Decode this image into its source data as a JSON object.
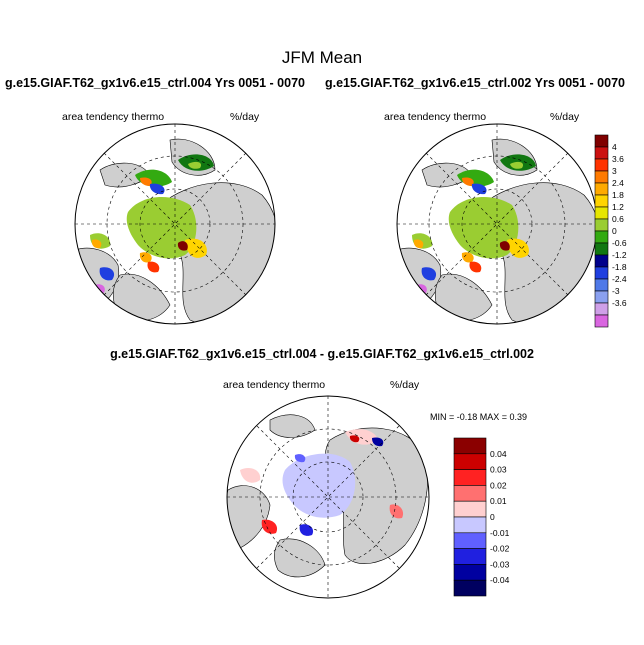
{
  "title": "JFM Mean",
  "panels": {
    "left_case": "g.e15.GIAF.T62_gx1v6.e15_ctrl.004  Yrs 0051 - 0070",
    "right_case": "g.e15.GIAF.T62_gx1v6.e15_ctrl.002  Yrs 0051 - 0070",
    "diff_case": "g.e15.GIAF.T62_gx1v6.e15_ctrl.004 - g.e15.GIAF.T62_gx1v6.e15_ctrl.002",
    "variable": "area tendency thermo",
    "units": "%/day",
    "minmax": "MIN =  -0.18 MAX =   0.39"
  },
  "chart_data": [
    {
      "type": "heatmap",
      "projection": "north-polar-stereographic",
      "title": "g.e15.GIAF.T62_gx1v6.e15_ctrl.004  Yrs 0051 - 0070",
      "variable": "area tendency thermo",
      "units": "%/day",
      "colorbar": {
        "levels": [
          "4",
          "3.6",
          "3",
          "2.4",
          "1.8",
          "1.2",
          "0.6",
          "0",
          "-0.6",
          "-1.2",
          "-1.8",
          "-2.4",
          "-3",
          "-3.6"
        ],
        "colors": [
          "#7f0000",
          "#cc1111",
          "#ff3300",
          "#ff7a00",
          "#ffaa00",
          "#ffd400",
          "#e6e600",
          "#9acd32",
          "#33aa11",
          "#117711",
          "#00008b",
          "#1f3fe0",
          "#4f79e8",
          "#8aa0f0",
          "#cfa0e8",
          "#d966e0"
        ]
      }
    },
    {
      "type": "heatmap",
      "projection": "north-polar-stereographic",
      "title": "g.e15.GIAF.T62_gx1v6.e15_ctrl.002  Yrs 0051 - 0070",
      "variable": "area tendency thermo",
      "units": "%/day"
    },
    {
      "type": "heatmap",
      "projection": "north-polar-stereographic",
      "title": "g.e15.GIAF.T62_gx1v6.e15_ctrl.004 - g.e15.GIAF.T62_gx1v6.e15_ctrl.002",
      "variable": "area tendency thermo",
      "units": "%/day",
      "min": -0.18,
      "max": 0.39,
      "colorbar": {
        "levels": [
          "0.04",
          "0.03",
          "0.02",
          "0.01",
          "0",
          "-0.01",
          "-0.02",
          "-0.03",
          "-0.04"
        ],
        "colors": [
          "#8b0000",
          "#cc0000",
          "#ff2222",
          "#ff7070",
          "#ffd0d0",
          "#c8c8ff",
          "#6060ff",
          "#2020e0",
          "#0000a0",
          "#000060"
        ]
      }
    }
  ]
}
